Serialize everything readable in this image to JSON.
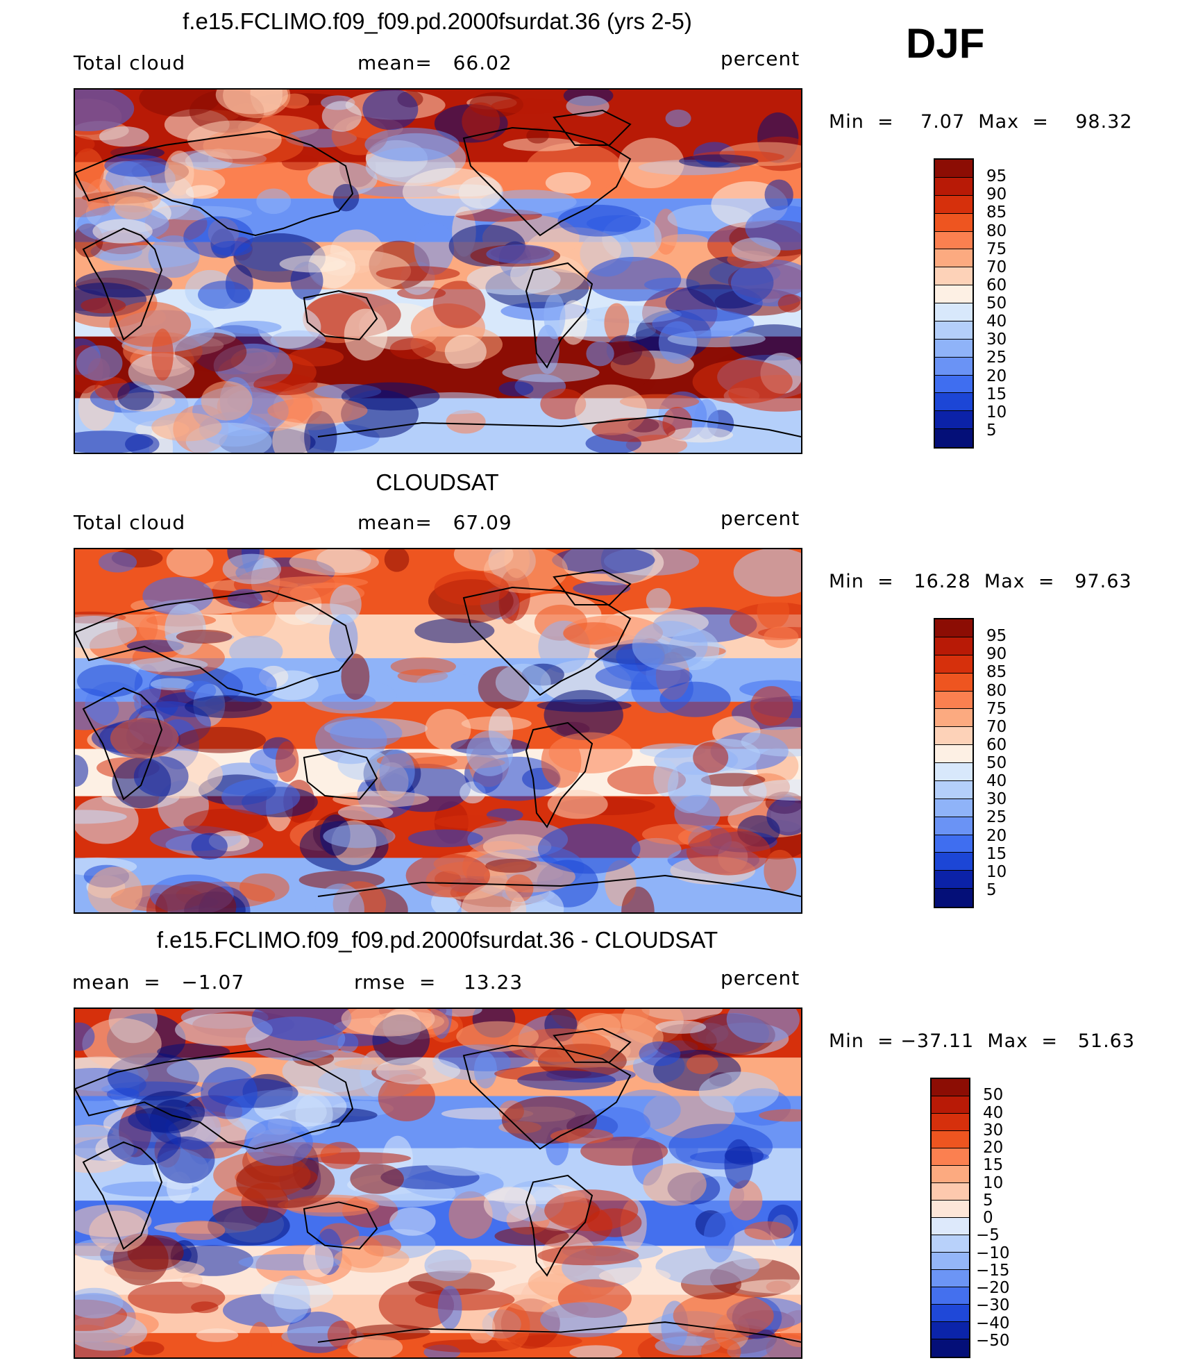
{
  "season": "DJF",
  "panels": [
    {
      "title": "f.e15.FCLIMO.f09_f09.pd.2000fsurdat.36 (yrs 2-5)",
      "left_label": "Total cloud",
      "center_label": "mean=   66.02",
      "right_label": "percent",
      "minmax": "Min  =    7.07  Max  =    98.32",
      "colorbar": {
        "labels": [
          "95",
          "90",
          "85",
          "80",
          "75",
          "70",
          "60",
          "50",
          "40",
          "30",
          "25",
          "20",
          "15",
          "10",
          "5"
        ],
        "colors": [
          "#8c0d04",
          "#b81a06",
          "#d6300c",
          "#ee5520",
          "#fb8050",
          "#fcaa80",
          "#fdd2b8",
          "#fdf0e4",
          "#d8e8fb",
          "#b4cffa",
          "#8fb3f8",
          "#6a93f5",
          "#3f6ef0",
          "#1c46d6",
          "#0b22a8",
          "#040f78"
        ]
      },
      "map": {
        "colormap": "sequential",
        "mean_value": "66.02"
      }
    },
    {
      "title": "CLOUDSAT",
      "left_label": "Total cloud",
      "center_label": "mean=   67.09",
      "right_label": "percent",
      "minmax": "Min  =   16.28  Max  =   97.63",
      "colorbar": {
        "labels": [
          "95",
          "90",
          "85",
          "80",
          "75",
          "70",
          "60",
          "50",
          "40",
          "30",
          "25",
          "20",
          "15",
          "10",
          "5"
        ],
        "colors": [
          "#8c0d04",
          "#b81a06",
          "#d6300c",
          "#ee5520",
          "#fb8050",
          "#fcaa80",
          "#fdd2b8",
          "#fdf0e4",
          "#d8e8fb",
          "#b4cffa",
          "#8fb3f8",
          "#6a93f5",
          "#3f6ef0",
          "#1c46d6",
          "#0b22a8",
          "#040f78"
        ]
      },
      "map": {
        "colormap": "sequential",
        "mean_value": "67.09"
      }
    },
    {
      "title": "f.e15.FCLIMO.f09_f09.pd.2000fsurdat.36 - CLOUDSAT",
      "left_label": "mean  =   −1.07",
      "center_label": "rmse  =    13.23",
      "right_label": "percent",
      "minmax": "Min  = −37.11  Max  =   51.63",
      "colorbar": {
        "labels": [
          "50",
          "40",
          "30",
          "20",
          "15",
          "10",
          "5",
          "0",
          "−5",
          "−10",
          "−15",
          "−20",
          "−30",
          "−40",
          "−50"
        ],
        "colors": [
          "#8c0d04",
          "#b81a06",
          "#d6300c",
          "#ee5520",
          "#fb8050",
          "#fcaa80",
          "#fdc9ae",
          "#fde6d8",
          "#dde9fb",
          "#b8d1fa",
          "#94b6f8",
          "#6c95f5",
          "#4470ee",
          "#1f48d8",
          "#0b24aa",
          "#040f78"
        ]
      },
      "map": {
        "colormap": "difference",
        "mean_value": "-1.07"
      }
    }
  ]
}
